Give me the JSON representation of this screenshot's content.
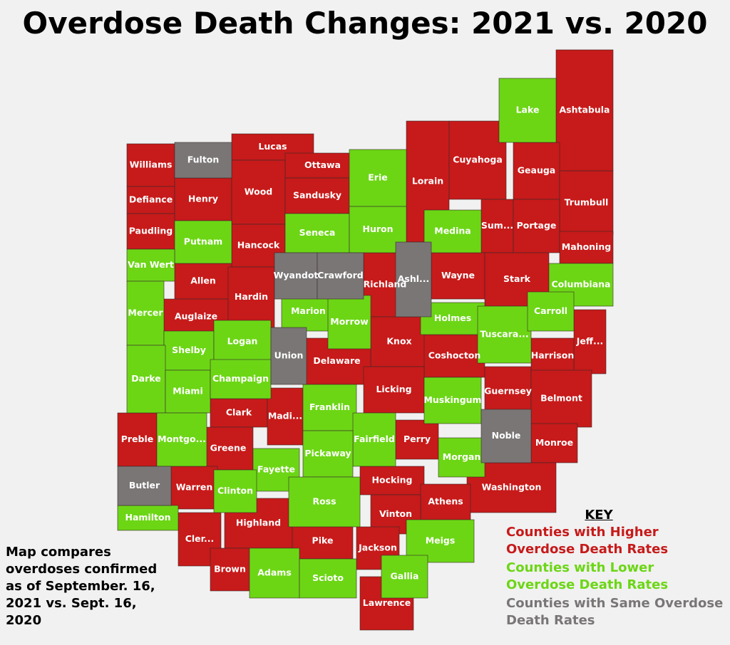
{
  "title": "Overdose Death Changes: 2021 vs. 2020",
  "note": "Map compares overdoses confirmed as of September. 16, 2021 vs. Sept. 16, 2020",
  "key": {
    "title": "KEY",
    "items": [
      {
        "label": "Counties with Higher Overdose Death Rates",
        "color": "#c71a1a",
        "counties": [
          "Williams",
          "Defiance",
          "Paudling",
          "Henry",
          "Lucas",
          "Ottawa",
          "Wood",
          "Sandusky",
          "Lorain",
          "Cuyahoga",
          "Ashtabula",
          "Geauga",
          "Trumbull",
          "Hancock",
          "Sum...",
          "Portage",
          "Mahoning",
          "Allen",
          "Richland",
          "Wayne",
          "Stark",
          "Auglaize",
          "Hardin",
          "Knox",
          "Jeff...",
          "Harrison",
          "Delaware",
          "Coshocton",
          "Licking",
          "Guernsey",
          "Belmont",
          "Clark",
          "Madi...",
          "Preble",
          "Greene",
          "Perry",
          "Monroe",
          "Hocking",
          "Washington",
          "Warren",
          "Athens",
          "Vinton",
          "Cler...",
          "Highland",
          "Pike",
          "Jackson",
          "Brown",
          "Lawrence"
        ]
      },
      {
        "label": "Counties with Lower Overdose Death Rates",
        "color": "#6cd615",
        "counties": [
          "Erie",
          "Lake",
          "Putnam",
          "Seneca",
          "Huron",
          "Medina",
          "Van Wert",
          "Columbiana",
          "Mercer",
          "Marion",
          "Morrow",
          "Holmes",
          "Tuscara...",
          "Carroll",
          "Shelby",
          "Logan",
          "Darke",
          "Miami",
          "Champaign",
          "Franklin",
          "Muskingum",
          "Montgo...",
          "Fairfield",
          "Pickaway",
          "Fayette",
          "Morgan",
          "Clinton",
          "Ross",
          "Hamilton",
          "Meigs",
          "Adams",
          "Scioto",
          "Gallia"
        ]
      },
      {
        "label": "Counties with Same Overdose Death Rates",
        "color": "#7a7676",
        "counties": [
          "Fulton",
          "Wyandot",
          "Crawford",
          "Ashl...",
          "Union",
          "Noble",
          "Butler"
        ]
      }
    ]
  }
}
